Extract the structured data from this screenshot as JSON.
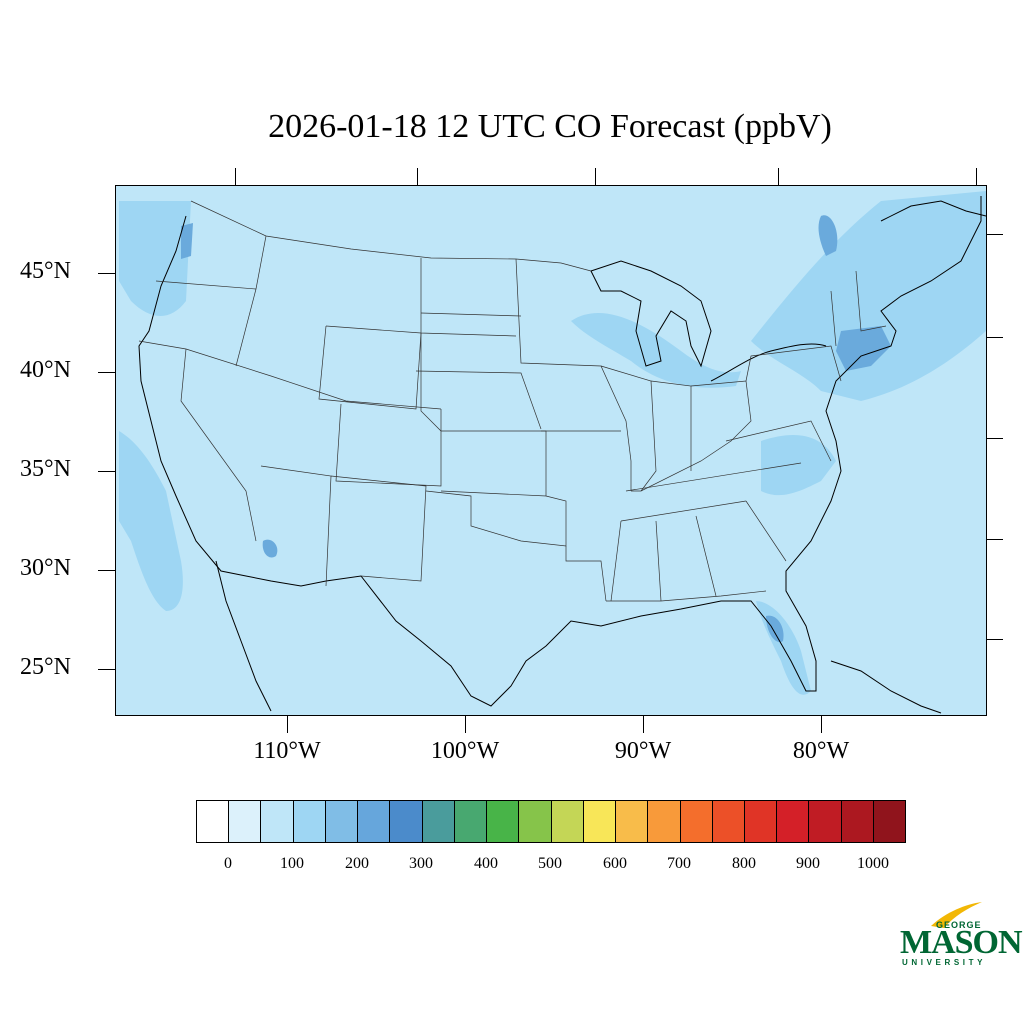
{
  "title": "2026-01-18 12 UTC CO Forecast (ppbV)",
  "map": {
    "background_color": "#bfe6f8",
    "state_line_color": "#333333",
    "enhanced_color": "#9ed6f3",
    "high_color": "#6aaadc"
  },
  "lat_labels": [
    "45°N",
    "40°N",
    "35°N",
    "30°N",
    "25°N"
  ],
  "lon_labels": [
    "110°W",
    "100°W",
    "90°W",
    "80°W"
  ],
  "colorbar": {
    "colors": [
      "#ffffff",
      "#dcf1fb",
      "#bfe6f8",
      "#9ed6f3",
      "#80bde6",
      "#66a6dc",
      "#4b8bcb",
      "#4a9c9c",
      "#48a870",
      "#48b448",
      "#86c44a",
      "#c4d656",
      "#f8e658",
      "#f8bc4a",
      "#f89a3a",
      "#f46e2c",
      "#ec5028",
      "#e03426",
      "#d42028",
      "#c01c24",
      "#ac1820",
      "#90141c"
    ],
    "labels": [
      "0",
      "100",
      "200",
      "300",
      "400",
      "500",
      "600",
      "700",
      "800",
      "900",
      "1000"
    ]
  },
  "logo": {
    "george": "GEORGE",
    "mason": "MASON",
    "university": "UNIVERSITY"
  }
}
